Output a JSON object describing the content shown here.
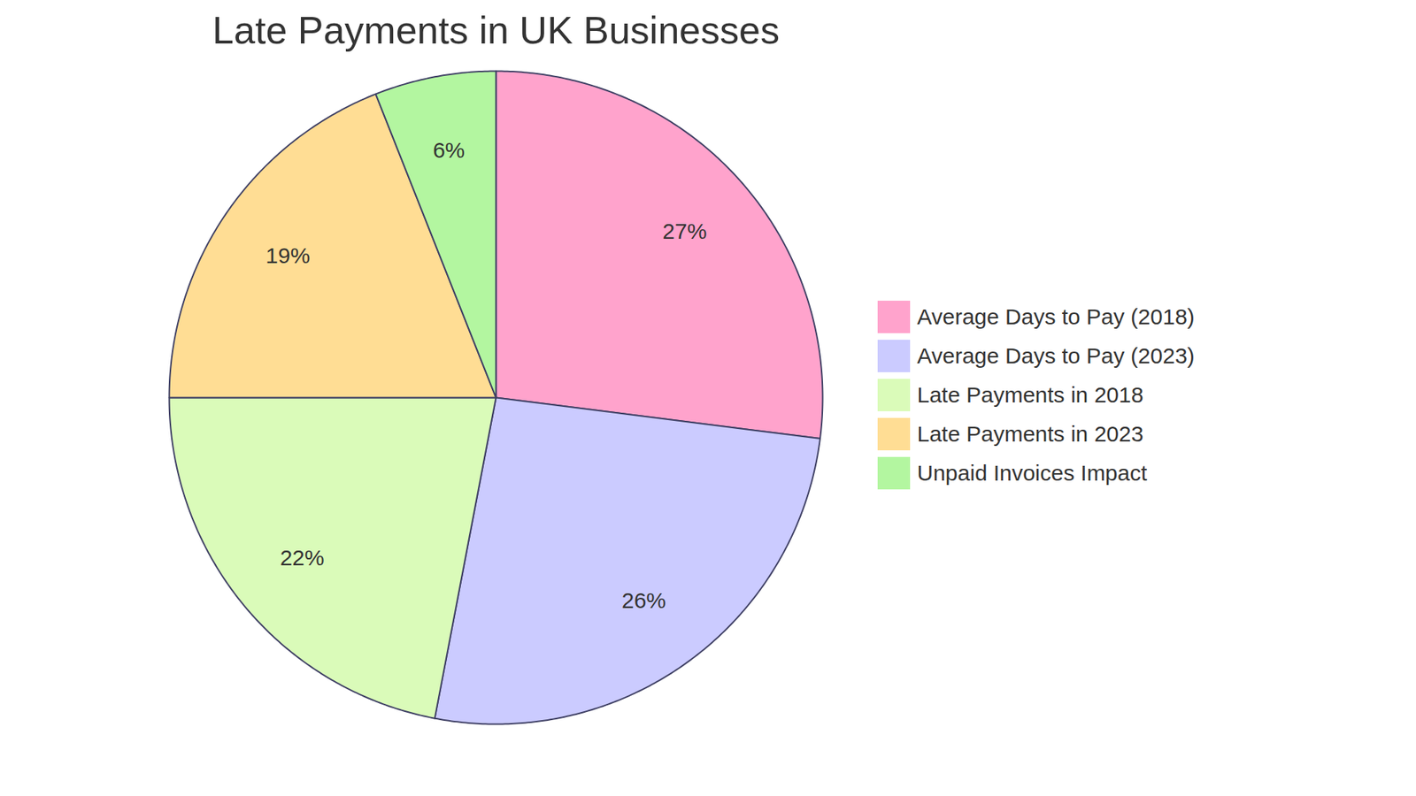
{
  "chart_data": {
    "type": "pie",
    "title": "Late Payments in UK Businesses",
    "categories": [
      "Average Days to Pay (2018)",
      "Average Days to Pay (2023)",
      "Late Payments in 2018",
      "Late Payments in 2023",
      "Unpaid Invoices Impact"
    ],
    "values": [
      27,
      26,
      22,
      19,
      6
    ],
    "value_labels": [
      "27%",
      "26%",
      "22%",
      "19%",
      "6%"
    ],
    "colors": [
      "#ffa3cc",
      "#cbcbff",
      "#dafbb9",
      "#ffdd94",
      "#b3f6a0"
    ],
    "data_labels": true,
    "legend": "right"
  }
}
